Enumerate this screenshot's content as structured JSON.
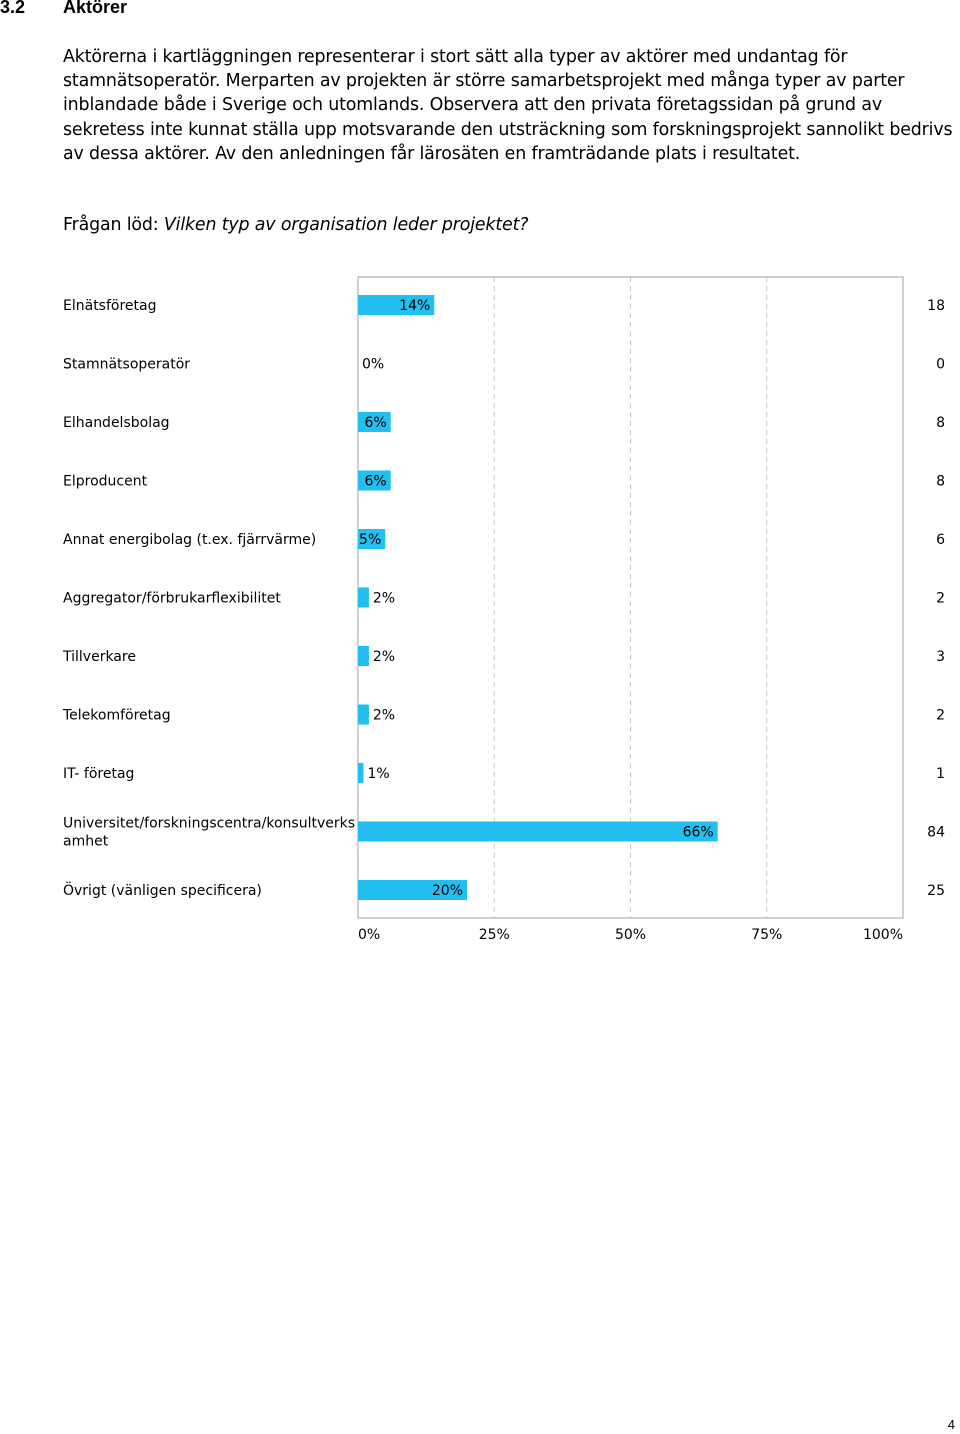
{
  "section": {
    "number": "3.2",
    "title": "Aktörer"
  },
  "paragraph": "Aktörerna i kartläggningen representerar i stort sätt alla typer av aktörer med undantag för stamnätsoperatör. Merparten av projekten är större samarbetsprojekt med många typer av parter inblandade både i Sverige och utomlands. Observera att den privata företagssidan på grund av sekretess inte kunnat ställa upp motsvarande den utsträckning som forskningsprojekt sannolikt bedrivs av dessa aktörer. Av den anledningen får lärosäten en framträdande plats i resultatet.",
  "question": {
    "prefix": "Frågan löd: ",
    "text": "Vilken typ av organisation leder projektet?"
  },
  "chart_data": {
    "type": "bar",
    "orientation": "horizontal",
    "categories": [
      "Elnätsföretag",
      "Stamnätsoperatör",
      "Elhandelsbolag",
      "Elproducent",
      "Annat energibolag (t.ex. fjärrvärme)",
      "Aggregator/förbrukarflexibilitet",
      "Tillverkare",
      "Telekomföretag",
      "IT- företag",
      "Universitet/forskningscentra/konsultverksamhet",
      "Övrigt (vänligen specificera)"
    ],
    "category_label_lines": [
      [
        "Elnätsföretag"
      ],
      [
        "Stamnätsoperatör"
      ],
      [
        "Elhandelsbolag"
      ],
      [
        "Elproducent"
      ],
      [
        "Annat energibolag (t.ex. fjärrvärme)"
      ],
      [
        "Aggregator/förbrukarflexibilitet"
      ],
      [
        "Tillverkare"
      ],
      [
        "Telekomföretag"
      ],
      [
        "IT- företag"
      ],
      [
        "Universitet/forskningscentra/konsultverks",
        "amhet"
      ],
      [
        "Övrigt (vänligen specificera)"
      ]
    ],
    "percent_values": [
      14,
      0,
      6,
      6,
      5,
      2,
      2,
      2,
      1,
      66,
      20
    ],
    "percent_labels": [
      "14%",
      "0%",
      "6%",
      "6%",
      "5%",
      "2%",
      "2%",
      "2%",
      "1%",
      "66%",
      "20%"
    ],
    "counts": [
      18,
      0,
      8,
      8,
      6,
      2,
      3,
      2,
      1,
      84,
      25
    ],
    "xlim": [
      0,
      100
    ],
    "x_ticks": [
      "0%",
      "25%",
      "50%",
      "75%",
      "100%"
    ],
    "grid": "vertical dashed",
    "bar_color": "#22bff0",
    "frame_color": "#a0a0a0",
    "grid_color": "#c8c8c8"
  },
  "page_number": "4"
}
